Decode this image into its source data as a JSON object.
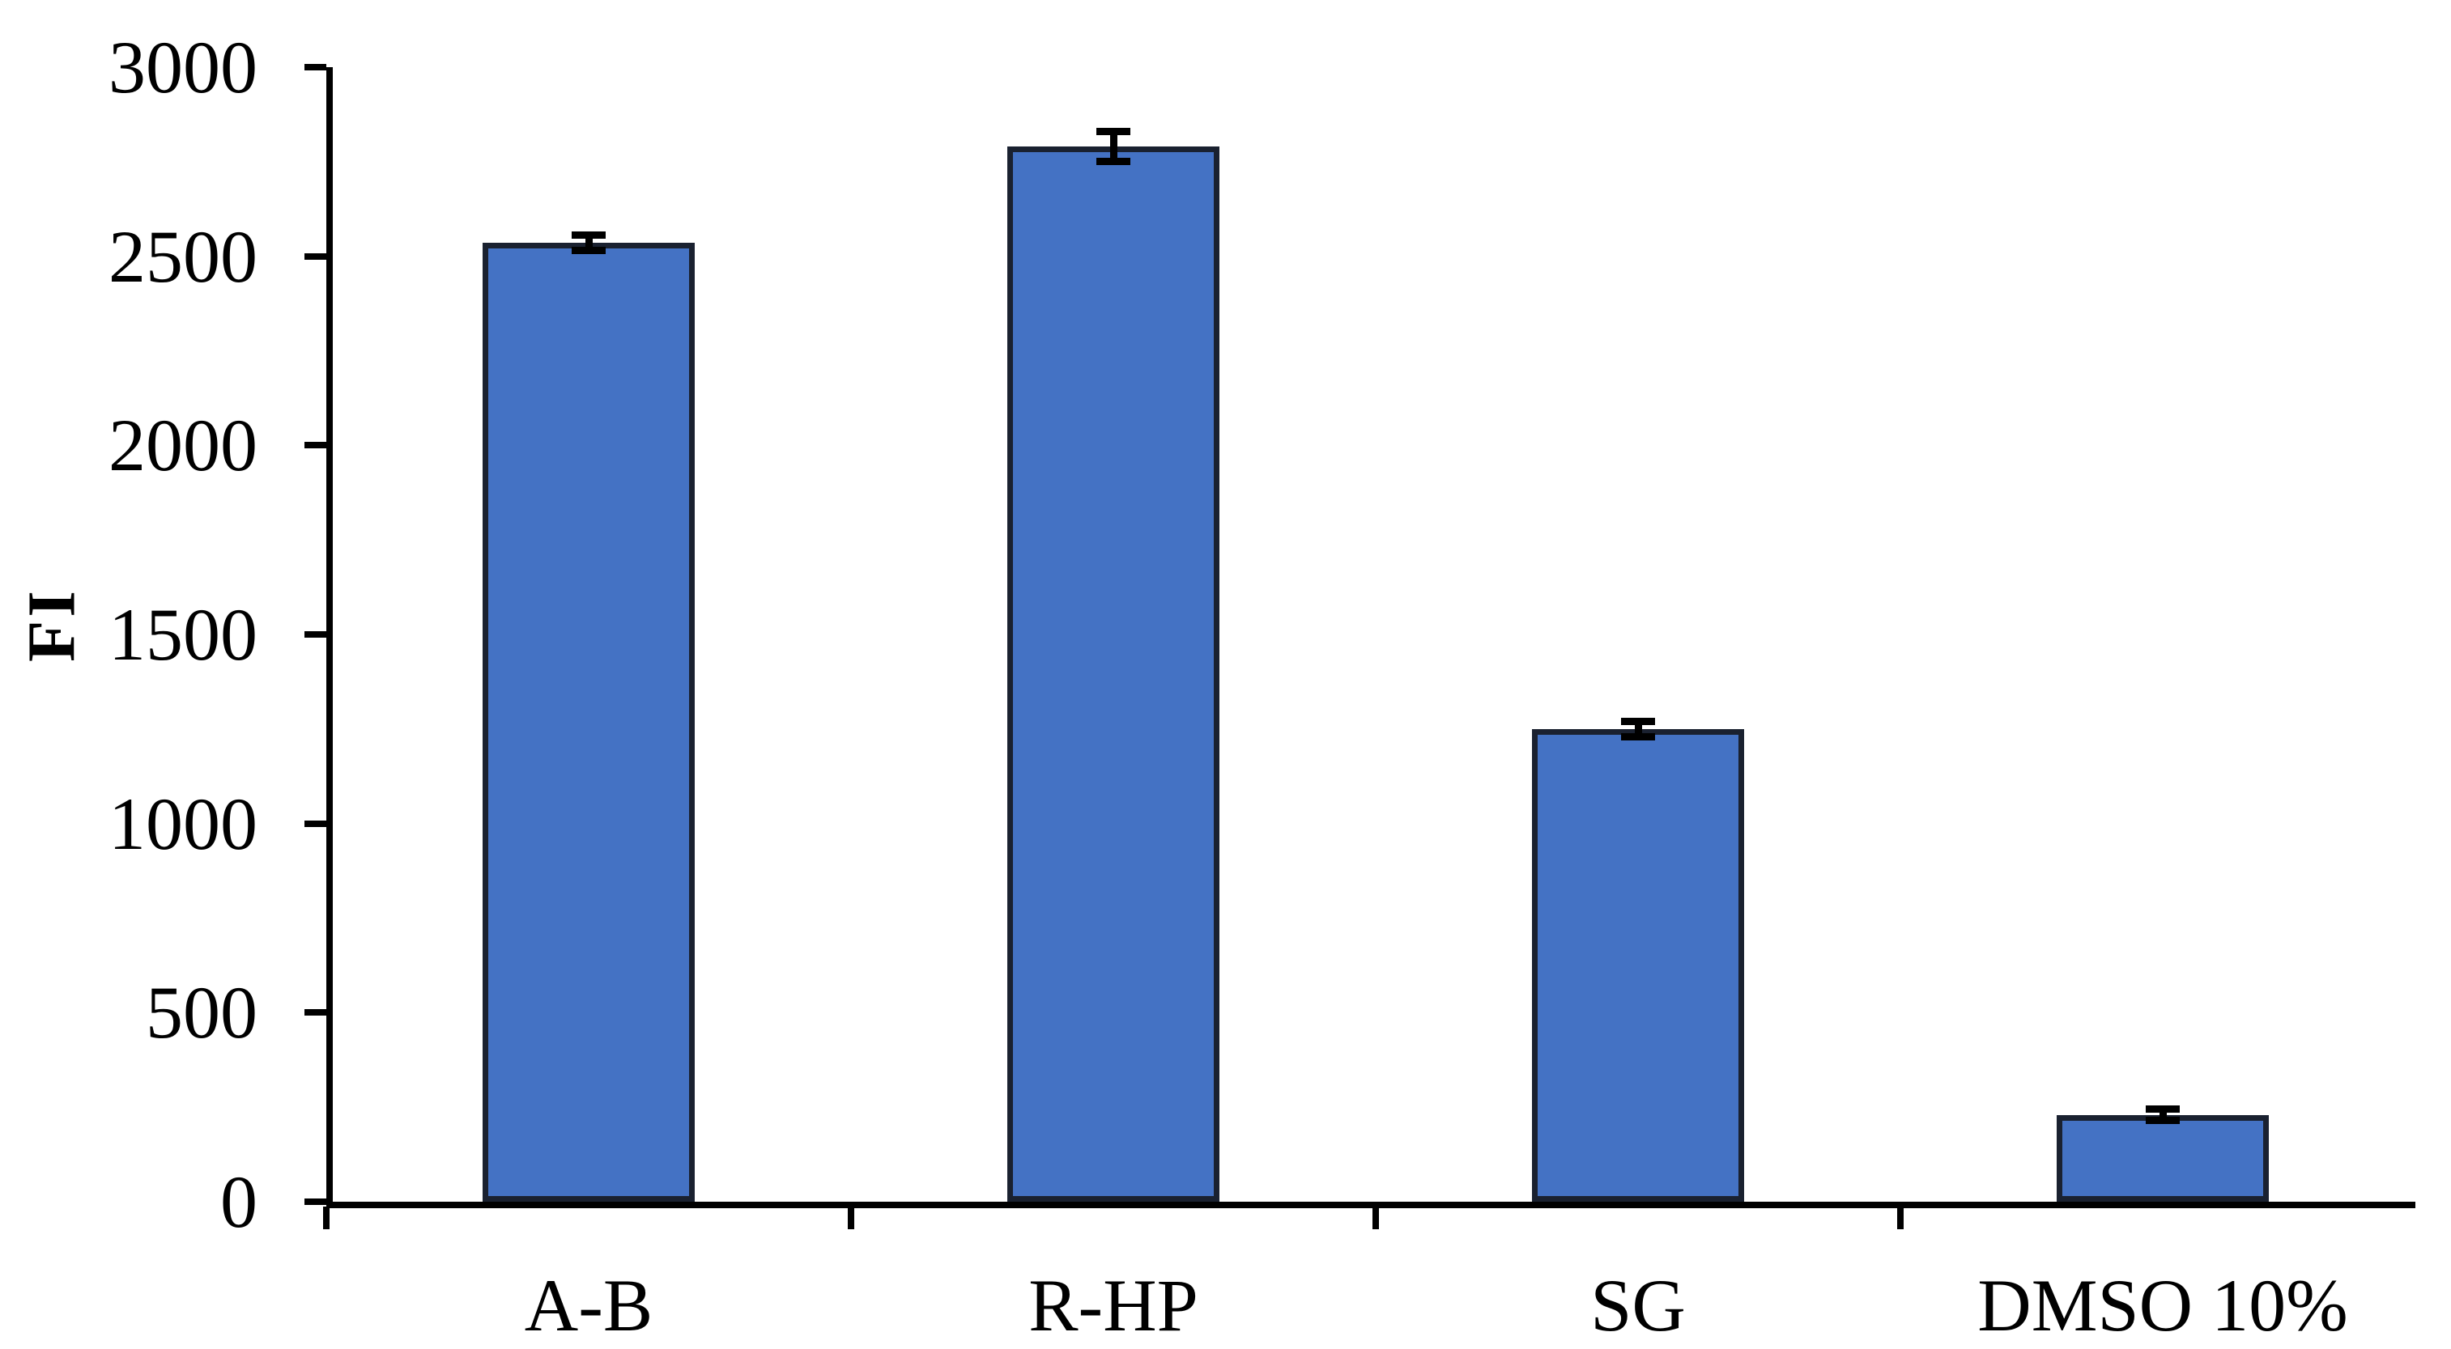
{
  "figure": {
    "background": "#ffffff"
  },
  "chart_data": {
    "type": "bar",
    "title": "",
    "xlabel": "",
    "ylabel": "FI",
    "categories": [
      "A-B",
      "R-HP",
      "SG",
      "DMSO 10%"
    ],
    "values": [
      2535,
      2790,
      1250,
      230
    ],
    "error_bars": [
      20,
      40,
      20,
      15
    ],
    "ylim": [
      0,
      3000
    ],
    "yticks": [
      0,
      500,
      1000,
      1500,
      2000,
      2500,
      3000
    ],
    "grid": false,
    "legend": "none",
    "bar_color": "#4472C4",
    "bar_border_color": "#1A2130",
    "error_bar_color": "#000000",
    "axis_color": "#000000",
    "tick_label_color": "#000000"
  }
}
